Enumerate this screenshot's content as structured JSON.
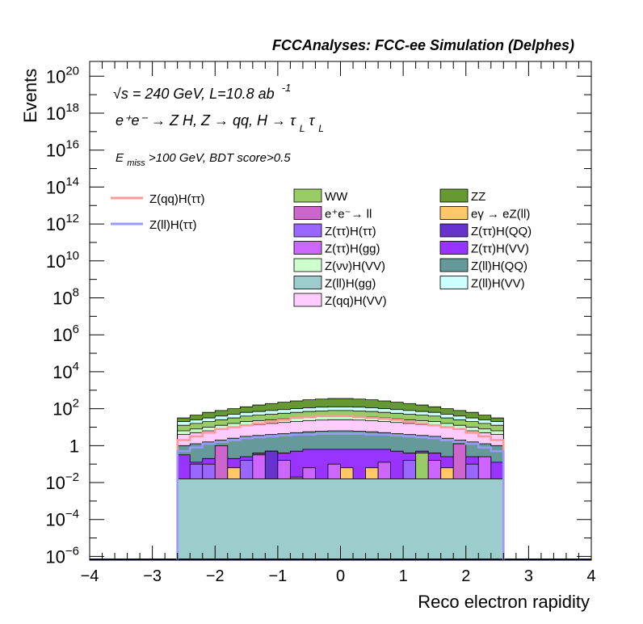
{
  "chart_data": {
    "type": "area",
    "title": "FCCAnalyses: FCC-ee Simulation (Delphes)",
    "xlabel": "Reco electron rapidity",
    "ylabel": "Events",
    "xlim": [
      -4,
      4
    ],
    "ylim_log10": [
      -6.2,
      20.8
    ],
    "log_y": true,
    "grid": false,
    "legend_position": "top",
    "x_ticks": [
      "−4",
      "−3",
      "−2",
      "−1",
      "0",
      "1",
      "2",
      "3",
      "4"
    ],
    "y_ticks": [
      {
        "base": "10",
        "exp": "20",
        "log": 20
      },
      {
        "base": "10",
        "exp": "18",
        "log": 18
      },
      {
        "base": "10",
        "exp": "16",
        "log": 16
      },
      {
        "base": "10",
        "exp": "14",
        "log": 14
      },
      {
        "base": "10",
        "exp": "12",
        "log": 12
      },
      {
        "base": "10",
        "exp": "10",
        "log": 10
      },
      {
        "base": "10",
        "exp": "8",
        "log": 8
      },
      {
        "base": "10",
        "exp": "6",
        "log": 6
      },
      {
        "base": "10",
        "exp": "4",
        "log": 4
      },
      {
        "base": "10",
        "exp": "2",
        "log": 2
      },
      {
        "base": "1",
        "exp": "",
        "log": 0
      },
      {
        "base": "10",
        "exp": "−2",
        "log": -2
      },
      {
        "base": "10",
        "exp": "−4",
        "log": -4
      },
      {
        "base": "10",
        "exp": "−6",
        "log": -6
      }
    ],
    "annotations": {
      "energy": "√s = 240 GeV, L=10.8 ab",
      "lumi_exp": "-1",
      "process": "e⁺e⁻ → Z H, Z  → qq, H  → τ",
      "tau_sub": "L",
      "cut_E": "E",
      "cut_sub": "miss",
      "cut_rest": ">100 GeV, BDT score>0.5"
    },
    "bin_edges": [
      -2.6,
      -2.4,
      -2.2,
      -2.0,
      -1.8,
      -1.6,
      -1.4,
      -1.2,
      -1.0,
      -0.8,
      -0.6,
      -0.4,
      -0.2,
      0.0,
      0.2,
      0.4,
      0.6,
      0.8,
      1.0,
      1.2,
      1.4,
      1.6,
      1.8,
      2.0,
      2.2,
      2.4,
      2.6
    ],
    "stacked_log10_boundaries": [
      {
        "name": "Z(ll)H(gg)",
        "color": "#9ccccc",
        "top": [
          -1.8,
          -1.8,
          -1.8,
          -1.8,
          -1.8,
          -1.8,
          -1.8,
          -1.8,
          -1.8,
          -1.8,
          -1.8,
          -1.8,
          -1.8,
          -1.8,
          -1.8,
          -1.8,
          -1.8,
          -1.8,
          -1.8,
          -1.8,
          -1.8,
          -1.8,
          -1.8,
          -1.8,
          -1.8,
          -1.8
        ]
      },
      {
        "name": "eγ → eZ(ll)",
        "color": "#fec866",
        "top": [
          -1.8,
          -1.8,
          -1.8,
          -1.8,
          -1.8,
          -1.8,
          -1.8,
          -1.8,
          -1.8,
          -1.8,
          -1.8,
          -1.8,
          -1.8,
          -1.8,
          -1.8,
          -1.8,
          -1.8,
          -1.8,
          -1.8,
          -1.8,
          -1.8,
          -1.8,
          -1.8,
          -1.8,
          -1.8,
          -1.8
        ]
      },
      {
        "name": "Z(ττ)H(ττ)",
        "color": "#9966ff",
        "top": [
          -1.8,
          -1.8,
          -1.8,
          -1.8,
          -1.8,
          -1.8,
          -1.8,
          -1.8,
          -1.8,
          -1.8,
          -1.8,
          -1.8,
          -1.8,
          -1.8,
          -1.8,
          -1.8,
          -1.8,
          -1.8,
          -1.8,
          -1.8,
          -1.8,
          -1.8,
          -1.8,
          -1.8,
          -1.8,
          -1.8
        ]
      },
      {
        "name": "Z(ττ)H(gg)",
        "color": "#cc66ff",
        "top": [
          -1.8,
          -1.8,
          -1.8,
          -1.8,
          -1.8,
          -1.8,
          -1.8,
          -1.8,
          -1.8,
          -1.8,
          -1.8,
          -1.8,
          -1.8,
          -1.8,
          -1.8,
          -1.8,
          -1.8,
          -1.8,
          -1.8,
          -1.8,
          -1.8,
          -1.8,
          -1.8,
          -1.8,
          -1.8,
          -1.8
        ]
      },
      {
        "name": "e⁺e⁻→ ll",
        "color": "#cc66cc",
        "top": [
          -1.8,
          -1.8,
          -1.8,
          -1.8,
          -1.8,
          -1.8,
          -1.8,
          -1.8,
          -1.8,
          -1.8,
          -1.8,
          -1.8,
          -1.8,
          -1.8,
          -1.8,
          -1.8,
          -1.8,
          -1.8,
          -1.8,
          -1.8,
          -1.8,
          -1.8,
          -1.8,
          -1.8,
          -1.8,
          -1.8
        ]
      },
      {
        "name": "Z(ττ)H(QQ)",
        "color": "#6633cc",
        "top": [
          -1.8,
          -1.8,
          -1.8,
          -1.8,
          -1.8,
          -1.8,
          -1.8,
          -1.8,
          -1.8,
          -1.8,
          -1.8,
          -1.8,
          -1.8,
          -1.8,
          -1.8,
          -1.8,
          -1.8,
          -1.8,
          -1.8,
          -1.8,
          -1.8,
          -1.8,
          -1.8,
          -1.8,
          -1.8,
          -1.8
        ]
      },
      {
        "name": "Z(ττ)H(VV)",
        "color": "#9933ff",
        "top": [
          -0.5,
          -0.9,
          -0.7,
          -0.6,
          -0.7,
          -0.6,
          -0.4,
          -0.3,
          -0.4,
          -0.3,
          -0.2,
          -0.2,
          -0.2,
          -0.2,
          -0.2,
          -0.2,
          -0.2,
          -0.3,
          -0.4,
          -0.3,
          -0.4,
          -0.6,
          -0.7,
          -0.6,
          -0.7,
          -0.9
        ]
      },
      {
        "name": "Z(ll)H(QQ)",
        "color": "#669999",
        "top": [
          0.0,
          0.1,
          0.2,
          0.3,
          0.4,
          0.5,
          0.55,
          0.6,
          0.65,
          0.7,
          0.75,
          0.78,
          0.8,
          0.8,
          0.78,
          0.75,
          0.7,
          0.65,
          0.6,
          0.55,
          0.5,
          0.4,
          0.3,
          0.2,
          0.1,
          0.0
        ]
      },
      {
        "name": "Z(qq)H(VV)",
        "color": "#ffccff",
        "top": [
          0.6,
          0.7,
          0.8,
          0.9,
          1.0,
          1.1,
          1.15,
          1.2,
          1.25,
          1.3,
          1.35,
          1.38,
          1.4,
          1.4,
          1.38,
          1.35,
          1.3,
          1.25,
          1.2,
          1.15,
          1.1,
          1.0,
          0.9,
          0.8,
          0.7,
          0.6
        ]
      },
      {
        "name": "Z(νν)H(VV)",
        "color": "#ccffcc",
        "top": [
          0.8,
          0.9,
          1.0,
          1.1,
          1.2,
          1.3,
          1.35,
          1.4,
          1.45,
          1.5,
          1.55,
          1.58,
          1.6,
          1.6,
          1.58,
          1.55,
          1.5,
          1.45,
          1.4,
          1.35,
          1.3,
          1.2,
          1.1,
          1.0,
          0.9,
          0.8
        ]
      },
      {
        "name": "WW",
        "color": "#99cc66",
        "top": [
          1.1,
          1.2,
          1.3,
          1.4,
          1.5,
          1.6,
          1.65,
          1.7,
          1.75,
          1.8,
          1.85,
          1.88,
          1.9,
          1.9,
          1.88,
          1.85,
          1.8,
          1.75,
          1.7,
          1.65,
          1.6,
          1.5,
          1.4,
          1.3,
          1.2,
          1.1
        ]
      },
      {
        "name": "Z(ll)H(VV)",
        "color": "#ccffff",
        "top": [
          1.3,
          1.4,
          1.5,
          1.6,
          1.7,
          1.8,
          1.85,
          1.9,
          1.95,
          2.0,
          2.05,
          2.08,
          2.1,
          2.1,
          2.08,
          2.05,
          2.0,
          1.95,
          1.9,
          1.85,
          1.8,
          1.7,
          1.6,
          1.5,
          1.4,
          1.3
        ]
      },
      {
        "name": "ZZ",
        "color": "#669933",
        "top": [
          1.5,
          1.65,
          1.8,
          1.9,
          2.0,
          2.1,
          2.2,
          2.28,
          2.35,
          2.42,
          2.48,
          2.52,
          2.55,
          2.55,
          2.52,
          2.48,
          2.42,
          2.35,
          2.28,
          2.2,
          2.1,
          2.0,
          1.9,
          1.8,
          1.65,
          1.5
        ]
      }
    ],
    "bin_patterns": [
      {
        "xlo": -2.6,
        "xhi": -2.4,
        "top": -1.8,
        "color": "#9ccccc"
      },
      {
        "xlo": -2.4,
        "xhi": -2.2,
        "top": -1.0,
        "color": "#9966ff"
      },
      {
        "xlo": -2.2,
        "xhi": -2.0,
        "top": -1.0,
        "color": "#9966ff"
      },
      {
        "xlo": -2.0,
        "xhi": -1.8,
        "top": 0.0,
        "color": "#cc66cc"
      },
      {
        "xlo": -1.8,
        "xhi": -1.6,
        "top": -1.2,
        "color": "#fec866"
      },
      {
        "xlo": -1.6,
        "xhi": -1.4,
        "top": -0.8,
        "color": "#9966ff"
      },
      {
        "xlo": -1.4,
        "xhi": -1.2,
        "top": -0.5,
        "color": "#cc66ff"
      },
      {
        "xlo": -1.2,
        "xhi": -1.0,
        "top": -0.3,
        "color": "#6633cc"
      },
      {
        "xlo": -1.0,
        "xhi": -0.8,
        "top": -0.8,
        "color": "#cc66ff"
      },
      {
        "xlo": -0.8,
        "xhi": -0.6,
        "top": -1.7,
        "color": "#9966ff"
      },
      {
        "xlo": -0.6,
        "xhi": -0.4,
        "top": -1.2,
        "color": "#cc66ff"
      },
      {
        "xlo": -0.4,
        "xhi": -0.2,
        "top": -1.8,
        "color": "#9966ff"
      },
      {
        "xlo": -0.2,
        "xhi": 0.0,
        "top": -1.0,
        "color": "#cc66ff"
      },
      {
        "xlo": 0.0,
        "xhi": 0.2,
        "top": -1.2,
        "color": "#fec866"
      },
      {
        "xlo": 0.2,
        "xhi": 0.4,
        "top": -1.8,
        "color": "#cc66ff"
      },
      {
        "xlo": 0.4,
        "xhi": 0.6,
        "top": -1.2,
        "color": "#fec866"
      },
      {
        "xlo": 0.6,
        "xhi": 0.8,
        "top": -0.9,
        "color": "#cc66ff"
      },
      {
        "xlo": 0.8,
        "xhi": 1.0,
        "top": -1.8,
        "color": "#cc66ff"
      },
      {
        "xlo": 1.0,
        "xhi": 1.2,
        "top": -0.8,
        "color": "#9966ff"
      },
      {
        "xlo": 1.2,
        "xhi": 1.4,
        "top": -0.4,
        "color": "#99cc66"
      },
      {
        "xlo": 1.4,
        "xhi": 1.6,
        "top": -0.8,
        "color": "#cc66ff"
      },
      {
        "xlo": 1.6,
        "xhi": 1.8,
        "top": -1.2,
        "color": "#fec866"
      },
      {
        "xlo": 1.8,
        "xhi": 2.0,
        "top": 0.1,
        "color": "#cc66cc"
      },
      {
        "xlo": 2.0,
        "xhi": 2.2,
        "top": -1.0,
        "color": "#9966ff"
      },
      {
        "xlo": 2.2,
        "xhi": 2.4,
        "top": -0.6,
        "color": "#cc66ff"
      },
      {
        "xlo": 2.4,
        "xhi": 2.6,
        "top": -1.8,
        "color": "#9ccccc"
      }
    ],
    "signal_lines": [
      {
        "name": "Z(qq)H(ττ)",
        "color": "#ff9999",
        "values_log10": [
          0.3,
          0.5,
          0.7,
          0.9,
          1.0,
          1.1,
          1.2,
          1.3,
          1.4,
          1.5,
          1.55,
          1.6,
          1.6,
          1.6,
          1.55,
          1.5,
          1.45,
          1.4,
          1.3,
          1.2,
          1.1,
          1.0,
          0.9,
          0.7,
          0.5,
          0.3
        ]
      },
      {
        "name": "Z(ll)H(ττ)",
        "color": "#9999ff",
        "values_log10": [
          -0.3,
          -0.1,
          0.1,
          0.2,
          0.3,
          0.4,
          0.45,
          0.5,
          0.55,
          0.6,
          0.6,
          0.65,
          0.65,
          0.65,
          0.65,
          0.6,
          0.6,
          0.55,
          0.5,
          0.45,
          0.4,
          0.3,
          0.2,
          0.1,
          -0.1,
          -0.3
        ]
      }
    ],
    "legend_signals": [
      {
        "name": "Z(qq)H(ττ)",
        "color": "#ff9999"
      },
      {
        "name": "Z(ll)H(ττ)",
        "color": "#9999ff"
      }
    ],
    "legend_backgrounds": [
      {
        "name": "WW",
        "color": "#99cc66"
      },
      {
        "name": "ZZ",
        "color": "#669933"
      },
      {
        "name": "e⁺e⁻→ ll",
        "color": "#cc66cc"
      },
      {
        "name": "eγ → eZ(ll)",
        "color": "#fec866"
      },
      {
        "name": "Z(ττ)H(ττ)",
        "color": "#9966ff"
      },
      {
        "name": "Z(ττ)H(QQ)",
        "color": "#6633cc"
      },
      {
        "name": "Z(ττ)H(gg)",
        "color": "#cc66ff"
      },
      {
        "name": "Z(ττ)H(VV)",
        "color": "#9933ff"
      },
      {
        "name": "Z(νν)H(VV)",
        "color": "#ccffcc"
      },
      {
        "name": "Z(ll)H(QQ)",
        "color": "#669999"
      },
      {
        "name": "Z(ll)H(gg)",
        "color": "#9ccccc"
      },
      {
        "name": "Z(ll)H(VV)",
        "color": "#ccffff"
      },
      {
        "name": "Z(qq)H(VV)",
        "color": "#ffccff"
      }
    ]
  }
}
